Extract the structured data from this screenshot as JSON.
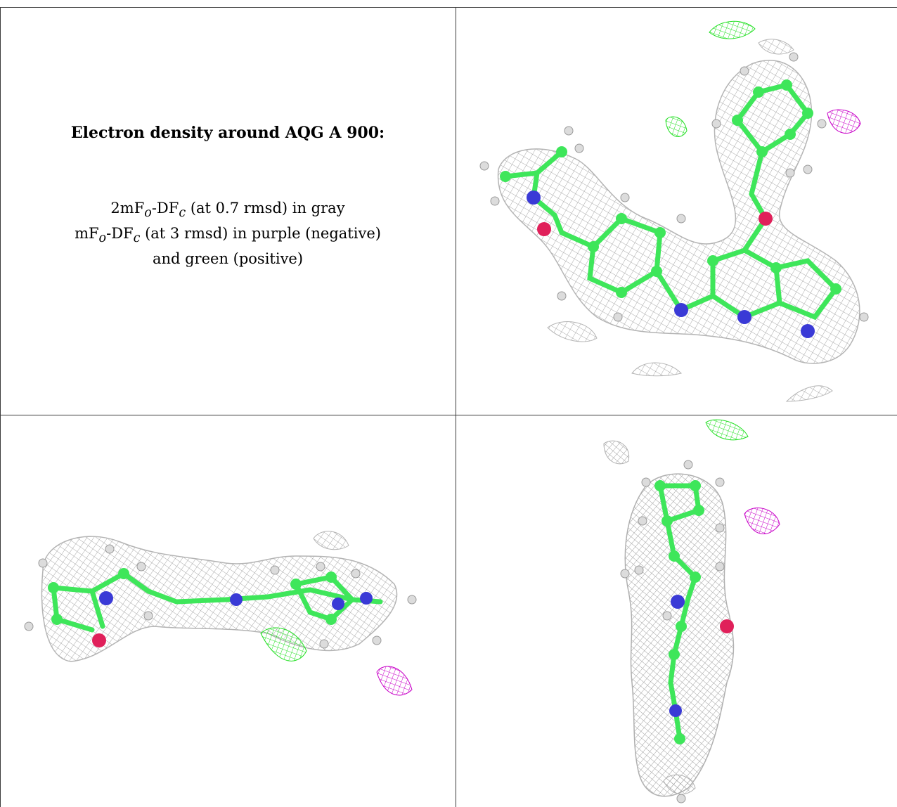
{
  "caption": {
    "title": "Electron density around AQG A 900:",
    "line1": {
      "a": "2mF",
      "a_sub": "o",
      "b": "-DF",
      "b_sub": "c",
      "rest": " (at 0.7 rmsd) in gray"
    },
    "line2": {
      "a": "mF",
      "a_sub": "o",
      "b": "-DF",
      "b_sub": "c",
      "rest": " (at 3 rmsd) in purple (negative)"
    },
    "line3": "and green (positive)"
  },
  "panels": [
    {
      "view": "top-right"
    },
    {
      "view": "side"
    },
    {
      "view": "end-on"
    }
  ],
  "colors": {
    "mesh_2fofc": "#a8a8a8",
    "mesh_positive": "#22e022",
    "mesh_negative": "#c800c8",
    "carbon": "#3ee65a",
    "nitrogen": "#3a3ad6",
    "oxygen": "#e0205a",
    "hydrogen": "#dcdcdc"
  }
}
